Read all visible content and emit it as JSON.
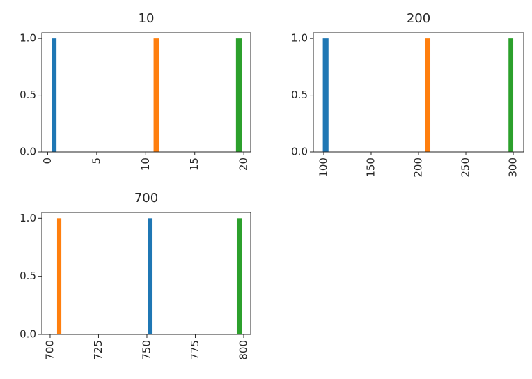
{
  "chart_data": [
    {
      "type": "histogram",
      "title": "10",
      "xlim": [
        -0.6,
        20.7
      ],
      "xticks": [
        0,
        5,
        10,
        15,
        20
      ],
      "ylim": [
        0,
        1.05
      ],
      "yticks": [
        {
          "value": 0,
          "label": "0.0"
        },
        {
          "value": 0.5,
          "label": "0.5"
        },
        {
          "value": 1,
          "label": "1.0"
        }
      ],
      "series": [
        {
          "color": "#1f77b4",
          "bins": [
            0.4,
            0.9
          ],
          "values": [
            1
          ]
        },
        {
          "color": "#ff7f0e",
          "bins": [
            10.8,
            11.35
          ],
          "values": [
            1
          ]
        },
        {
          "color": "#2ca02c",
          "bins": [
            19.2,
            19.8
          ],
          "values": [
            1
          ]
        }
      ]
    },
    {
      "type": "histogram",
      "title": "200",
      "xlim": [
        89,
        311
      ],
      "xticks": [
        100,
        150,
        200,
        250,
        300
      ],
      "ylim": [
        0,
        1.05
      ],
      "yticks": [
        {
          "value": 0,
          "label": "0.0"
        },
        {
          "value": 0.5,
          "label": "0.5"
        },
        {
          "value": 1,
          "label": "1.0"
        }
      ],
      "series": [
        {
          "color": "#1f77b4",
          "bins": [
            99,
            105
          ],
          "values": [
            1
          ]
        },
        {
          "color": "#ff7f0e",
          "bins": [
            207,
            212.5
          ],
          "values": [
            1
          ]
        },
        {
          "color": "#2ca02c",
          "bins": [
            295,
            300
          ],
          "values": [
            1
          ]
        }
      ]
    },
    {
      "type": "histogram",
      "title": "700",
      "xlim": [
        695.7,
        803.6
      ],
      "xticks": [
        700,
        725,
        750,
        775,
        800
      ],
      "ylim": [
        0,
        1.05
      ],
      "yticks": [
        {
          "value": 0,
          "label": "0.0"
        },
        {
          "value": 0.5,
          "label": "0.5"
        },
        {
          "value": 1,
          "label": "1.0"
        }
      ],
      "series": [
        {
          "color": "#1f77b4",
          "bins": [
            750.7,
            752.9
          ],
          "values": [
            1
          ]
        },
        {
          "color": "#ff7f0e",
          "bins": [
            703.6,
            705.8
          ],
          "values": [
            1
          ]
        },
        {
          "color": "#2ca02c",
          "bins": [
            796.4,
            799
          ],
          "values": [
            1
          ]
        }
      ]
    }
  ]
}
